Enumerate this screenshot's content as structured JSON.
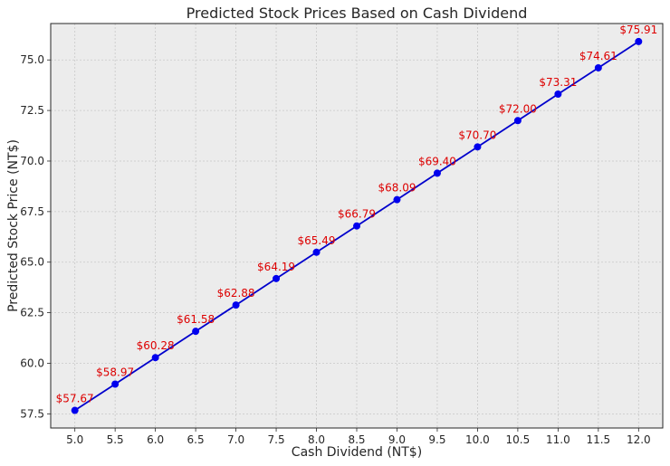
{
  "chart_data": {
    "type": "line",
    "title": "Predicted Stock Prices Based on Cash Dividend",
    "xlabel": "Cash Dividend (NT$)",
    "ylabel": "Predicted Stock Price (NT$)",
    "x": [
      5.0,
      5.5,
      6.0,
      6.5,
      7.0,
      7.5,
      8.0,
      8.5,
      9.0,
      9.5,
      10.0,
      10.5,
      11.0,
      11.5,
      12.0
    ],
    "series": [
      {
        "name": "Predicted Stock Price",
        "values": [
          57.67,
          58.97,
          60.28,
          61.58,
          62.88,
          64.19,
          65.49,
          66.79,
          68.09,
          69.4,
          70.7,
          72.0,
          73.31,
          74.61,
          75.91
        ],
        "labels": [
          "$57.67",
          "$58.97",
          "$60.28",
          "$61.58",
          "$62.88",
          "$64.19",
          "$65.49",
          "$66.79",
          "$68.09",
          "$69.40",
          "$70.70",
          "$72.00",
          "$73.31",
          "$74.61",
          "$75.91"
        ]
      }
    ],
    "xticks": [
      "5.0",
      "5.5",
      "6.0",
      "6.5",
      "7.0",
      "7.5",
      "8.0",
      "8.5",
      "9.0",
      "9.5",
      "10.0",
      "10.5",
      "11.0",
      "11.5",
      "12.0"
    ],
    "yticks": [
      "57.5",
      "60.0",
      "62.5",
      "65.0",
      "67.5",
      "70.0",
      "72.5",
      "75.0"
    ],
    "ytick_values": [
      57.5,
      60.0,
      62.5,
      65.0,
      67.5,
      70.0,
      72.5,
      75.0
    ],
    "xlim": [
      4.7,
      12.3
    ],
    "ylim": [
      56.8,
      76.8
    ],
    "grid": true,
    "colors": {
      "line": "#0000cc",
      "marker": "#0000ee",
      "label": "#dd0000",
      "plot_background": "#ececec",
      "grid": "#c8c8c8"
    }
  }
}
